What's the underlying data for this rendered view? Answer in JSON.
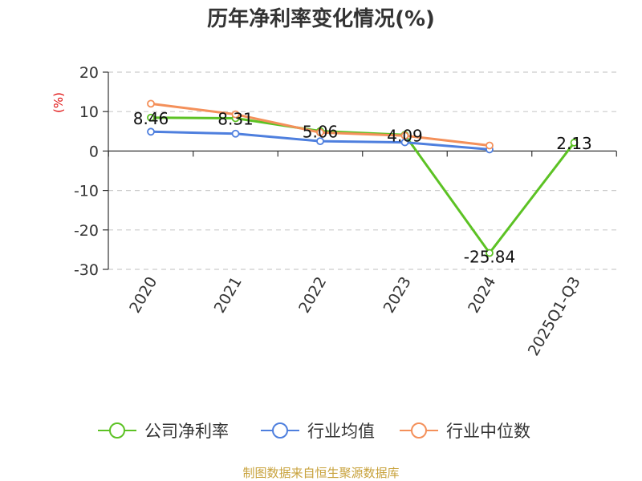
{
  "chart_data": {
    "type": "line",
    "title": "历年净利率变化情况(%)",
    "ylabel": "(%)",
    "xlabel": "",
    "ylim": [
      -30,
      20
    ],
    "yticks": [
      20,
      10,
      0,
      -10,
      -20,
      -30
    ],
    "categories": [
      "2020",
      "2021",
      "2022",
      "2023",
      "2024",
      "2025Q1-Q3"
    ],
    "grid": true,
    "legend_position": "bottom",
    "series": [
      {
        "name": "公司净利率",
        "color": "#5cc224",
        "values": [
          8.46,
          8.31,
          5.06,
          4.09,
          -25.84,
          2.13
        ],
        "labels": [
          "8.46",
          "8.31",
          "5.06",
          "4.09",
          "-25.84",
          "2.13"
        ]
      },
      {
        "name": "行业均值",
        "color": "#4e7fde",
        "values": [
          4.9,
          4.4,
          2.5,
          2.2,
          0.4,
          null
        ]
      },
      {
        "name": "行业中位数",
        "color": "#f4905a",
        "values": [
          12.0,
          9.3,
          4.7,
          3.9,
          1.4,
          null
        ]
      }
    ],
    "source": "制图数据来自恒生聚源数据库"
  }
}
